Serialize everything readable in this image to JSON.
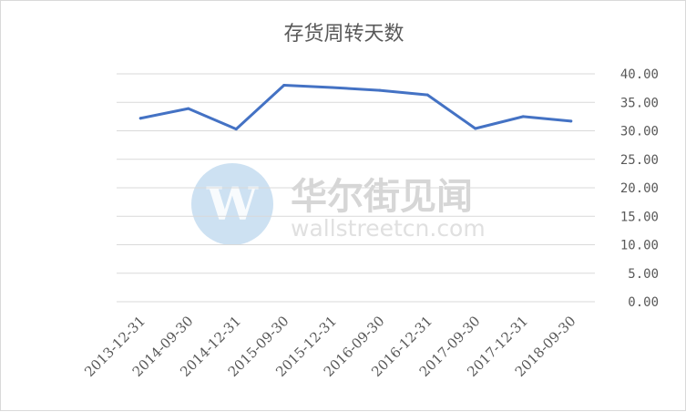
{
  "chart_data": {
    "type": "line",
    "title": "存货周转天数",
    "categories": [
      "2013-12-31",
      "2014-09-30",
      "2014-12-31",
      "2015-09-30",
      "2015-12-31",
      "2016-09-30",
      "2016-12-31",
      "2017-09-30",
      "2017-12-31",
      "2018-09-30"
    ],
    "series": [
      {
        "values": [
          32.2,
          33.9,
          30.3,
          38.0,
          37.6,
          37.1,
          36.3,
          30.4,
          32.5,
          31.7
        ]
      }
    ],
    "y_ticks": [
      "0.00",
      "5.00",
      "10.00",
      "15.00",
      "20.00",
      "25.00",
      "30.00",
      "35.00",
      "40.00"
    ],
    "ylim": [
      0,
      40
    ],
    "y_axis_side": "right",
    "grid": true,
    "line_color": "#4472c4",
    "grid_color": "#d9d9d9"
  },
  "watermark": {
    "logo_letter": "W",
    "name_cn": "华尔街见闻",
    "name_en": "wallstreetcn.com",
    "color": "#5b9bd5"
  }
}
